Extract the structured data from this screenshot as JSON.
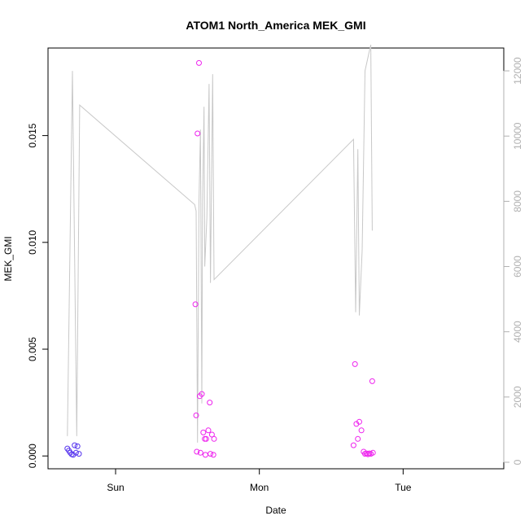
{
  "chart_data": {
    "type": "scatter",
    "title": "ATOM1 North_America MEK_GMI",
    "xlabel": "Date",
    "ylabel": "MEK_GMI",
    "x_ticks": [
      {
        "label": "Sun",
        "value": 0
      },
      {
        "label": "Mon",
        "value": 1
      },
      {
        "label": "Tue",
        "value": 2
      }
    ],
    "xlim": [
      -0.47,
      2.7
    ],
    "ylim": [
      -0.0006,
      0.0191
    ],
    "y_ticks": [
      {
        "label": "0.000",
        "value": 0.0
      },
      {
        "label": "0.005",
        "value": 0.005
      },
      {
        "label": "0.010",
        "value": 0.01
      },
      {
        "label": "0.015",
        "value": 0.015
      }
    ],
    "y2lim": [
      -200,
      12700
    ],
    "y2_ticks": [
      {
        "label": "0",
        "value": 0
      },
      {
        "label": "2000",
        "value": 2000
      },
      {
        "label": "4000",
        "value": 4000
      },
      {
        "label": "6000",
        "value": 6000
      },
      {
        "label": "8000",
        "value": 8000
      },
      {
        "label": "10000",
        "value": 10000
      },
      {
        "label": "12000",
        "value": 12000
      }
    ],
    "grid": false,
    "series": [
      {
        "type": "points",
        "axis": "left",
        "color": "#5533ee",
        "points": [
          [
            -0.335,
            0.00035
          ],
          [
            -0.325,
            0.00025
          ],
          [
            -0.315,
            0.00015
          ],
          [
            -0.305,
            8e-05
          ],
          [
            -0.295,
            5e-05
          ],
          [
            -0.285,
            0.0005
          ],
          [
            -0.275,
            0.00015
          ],
          [
            -0.265,
            0.00045
          ],
          [
            -0.255,
            0.0001
          ]
        ]
      },
      {
        "type": "points",
        "axis": "left",
        "color": "#ee22ee",
        "points": [
          [
            0.555,
            0.0071
          ],
          [
            0.56,
            0.0019
          ],
          [
            0.565,
            0.0002
          ],
          [
            0.57,
            0.0151
          ],
          [
            0.58,
            0.0184
          ],
          [
            0.585,
            0.0028
          ],
          [
            0.59,
            0.00015
          ],
          [
            0.6,
            0.0029
          ],
          [
            0.61,
            0.0011
          ],
          [
            0.62,
            0.0008
          ],
          [
            0.625,
            5e-05
          ],
          [
            0.63,
            0.0008
          ],
          [
            0.645,
            0.0012
          ],
          [
            0.655,
            0.0025
          ],
          [
            0.66,
            0.0001
          ],
          [
            0.67,
            0.001
          ],
          [
            0.68,
            5e-05
          ],
          [
            0.685,
            0.0008
          ],
          [
            1.655,
            0.0005
          ],
          [
            1.665,
            0.0043
          ],
          [
            1.675,
            0.0015
          ],
          [
            1.685,
            0.0008
          ],
          [
            1.695,
            0.0016
          ],
          [
            1.71,
            0.0012
          ],
          [
            1.725,
            0.0002
          ],
          [
            1.735,
            0.0001
          ],
          [
            1.745,
            0.00012
          ],
          [
            1.755,
            8e-05
          ],
          [
            1.765,
            0.00012
          ],
          [
            1.775,
            0.0001
          ],
          [
            1.785,
            0.0035
          ],
          [
            1.79,
            0.00015
          ]
        ]
      },
      {
        "type": "line",
        "axis": "right",
        "color": "#c8c8c8",
        "points": [
          [
            -0.335,
            800
          ],
          [
            -0.3,
            12000
          ],
          [
            -0.27,
            800
          ],
          [
            -0.25,
            10950
          ],
          [
            0.55,
            7900
          ],
          [
            0.56,
            7700
          ],
          [
            0.57,
            600
          ],
          [
            0.58,
            8000
          ],
          [
            0.59,
            10200
          ],
          [
            0.6,
            1800
          ],
          [
            0.605,
            8000
          ],
          [
            0.615,
            10900
          ],
          [
            0.62,
            6000
          ],
          [
            0.635,
            7500
          ],
          [
            0.65,
            11600
          ],
          [
            0.66,
            5500
          ],
          [
            0.675,
            11900
          ],
          [
            0.685,
            5600
          ],
          [
            1.655,
            9900
          ],
          [
            1.67,
            4600
          ],
          [
            1.685,
            9600
          ],
          [
            1.695,
            4500
          ],
          [
            1.715,
            6500
          ],
          [
            1.735,
            12000
          ],
          [
            1.76,
            12500
          ],
          [
            1.775,
            12800
          ],
          [
            1.785,
            7100
          ]
        ]
      }
    ]
  }
}
